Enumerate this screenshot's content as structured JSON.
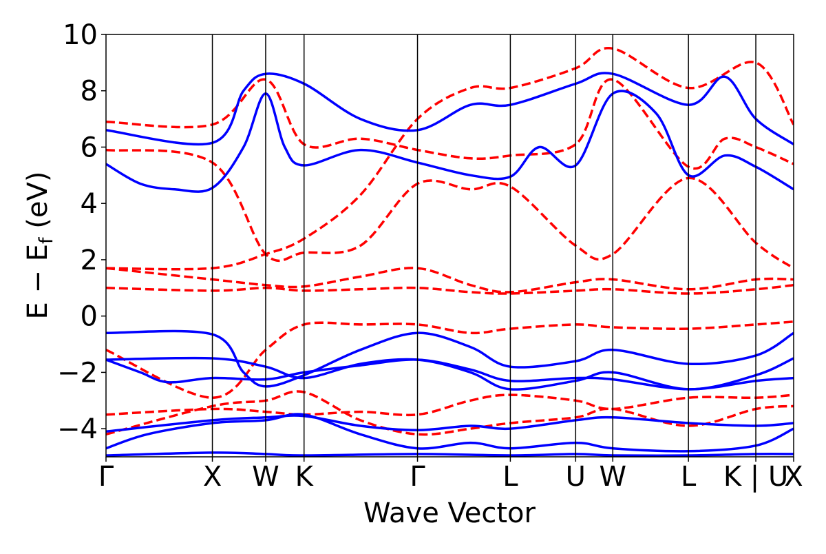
{
  "chart_data": {
    "type": "line",
    "xlabel": "Wave Vector",
    "ylabel": {
      "text": "E − E",
      "subscript": "f",
      "unit": " (eV)"
    },
    "ylim": [
      -5,
      10
    ],
    "yticks": [
      10,
      8,
      6,
      4,
      2,
      0,
      -2,
      -4
    ],
    "ytick_labels": [
      "10",
      "8",
      "6",
      "4",
      "2",
      "0",
      "−2",
      "−4"
    ],
    "kpath_range": [
      0,
      1
    ],
    "high_symmetry_points": [
      {
        "label": "Γ",
        "x": 0.0
      },
      {
        "label": "X",
        "x": 0.1547
      },
      {
        "label": "W",
        "x": 0.2322
      },
      {
        "label": "K",
        "x": 0.288
      },
      {
        "label": "Γ",
        "x": 0.453
      },
      {
        "label": "L",
        "x": 0.588
      },
      {
        "label": "U",
        "x": 0.683
      },
      {
        "label": "W",
        "x": 0.737
      },
      {
        "label": "L",
        "x": 0.847
      },
      {
        "label": "K | U",
        "x": 0.945
      },
      {
        "label": "X",
        "x": 1.0
      }
    ],
    "series": [
      {
        "style": "solid",
        "color": "#0000ff",
        "bands": [
          [
            [
              0,
              -4.95
            ],
            [
              0.1547,
              -4.85
            ],
            [
              0.2322,
              -4.9
            ],
            [
              0.288,
              -4.95
            ],
            [
              0.453,
              -4.9
            ],
            [
              0.588,
              -4.95
            ],
            [
              0.683,
              -4.9
            ],
            [
              0.737,
              -4.95
            ],
            [
              0.847,
              -4.95
            ],
            [
              0.945,
              -4.9
            ],
            [
              1,
              -4.9
            ]
          ],
          [
            [
              0,
              -4.7
            ],
            [
              0.06,
              -4.2
            ],
            [
              0.1547,
              -3.8
            ],
            [
              0.2322,
              -3.7
            ],
            [
              0.288,
              -3.5
            ],
            [
              0.37,
              -4.2
            ],
            [
              0.453,
              -4.7
            ],
            [
              0.53,
              -4.5
            ],
            [
              0.588,
              -4.7
            ],
            [
              0.683,
              -4.5
            ],
            [
              0.737,
              -4.7
            ],
            [
              0.847,
              -4.8
            ],
            [
              0.945,
              -4.6
            ],
            [
              1,
              -4.0
            ]
          ],
          [
            [
              0,
              -4.1
            ],
            [
              0.1547,
              -3.7
            ],
            [
              0.2322,
              -3.6
            ],
            [
              0.288,
              -3.55
            ],
            [
              0.37,
              -3.9
            ],
            [
              0.453,
              -4.05
            ],
            [
              0.53,
              -3.9
            ],
            [
              0.588,
              -4.0
            ],
            [
              0.683,
              -3.7
            ],
            [
              0.737,
              -3.6
            ],
            [
              0.847,
              -3.8
            ],
            [
              0.945,
              -3.9
            ],
            [
              1,
              -3.8
            ]
          ],
          [
            [
              0,
              -1.55
            ],
            [
              0.05,
              -2.0
            ],
            [
              0.09,
              -2.35
            ],
            [
              0.1547,
              -2.2
            ],
            [
              0.2322,
              -2.25
            ],
            [
              0.288,
              -2.0
            ],
            [
              0.37,
              -1.75
            ],
            [
              0.453,
              -1.55
            ],
            [
              0.53,
              -1.9
            ],
            [
              0.588,
              -2.3
            ],
            [
              0.683,
              -2.2
            ],
            [
              0.737,
              -2.25
            ],
            [
              0.847,
              -2.6
            ],
            [
              0.945,
              -2.3
            ],
            [
              1,
              -2.2
            ]
          ],
          [
            [
              0,
              -1.55
            ],
            [
              0.1547,
              -1.5
            ],
            [
              0.2322,
              -1.8
            ],
            [
              0.288,
              -2.2
            ],
            [
              0.37,
              -1.7
            ],
            [
              0.453,
              -1.55
            ],
            [
              0.53,
              -2.0
            ],
            [
              0.588,
              -2.6
            ],
            [
              0.683,
              -2.3
            ],
            [
              0.737,
              -2.0
            ],
            [
              0.847,
              -2.6
            ],
            [
              0.945,
              -2.1
            ],
            [
              1,
              -1.5
            ]
          ],
          [
            [
              0,
              -0.6
            ],
            [
              0.1547,
              -0.65
            ],
            [
              0.2,
              -2.0
            ],
            [
              0.2322,
              -2.5
            ],
            [
              0.288,
              -2.1
            ],
            [
              0.37,
              -1.2
            ],
            [
              0.453,
              -0.6
            ],
            [
              0.53,
              -1.1
            ],
            [
              0.588,
              -1.8
            ],
            [
              0.683,
              -1.6
            ],
            [
              0.737,
              -1.2
            ],
            [
              0.847,
              -1.7
            ],
            [
              0.945,
              -1.4
            ],
            [
              1,
              -0.6
            ]
          ],
          [
            [
              0,
              5.4
            ],
            [
              0.05,
              4.7
            ],
            [
              0.1,
              4.5
            ],
            [
              0.1547,
              4.55
            ],
            [
              0.2,
              6.0
            ],
            [
              0.2322,
              7.9
            ],
            [
              0.26,
              6.0
            ],
            [
              0.288,
              5.35
            ],
            [
              0.37,
              5.9
            ],
            [
              0.453,
              5.45
            ],
            [
              0.53,
              5.0
            ],
            [
              0.588,
              4.95
            ],
            [
              0.63,
              6.0
            ],
            [
              0.683,
              5.35
            ],
            [
              0.737,
              7.9
            ],
            [
              0.8,
              7.2
            ],
            [
              0.847,
              5.0
            ],
            [
              0.9,
              5.7
            ],
            [
              0.945,
              5.3
            ],
            [
              1,
              4.5
            ]
          ],
          [
            [
              0,
              6.6
            ],
            [
              0.1547,
              6.15
            ],
            [
              0.2,
              8.0
            ],
            [
              0.2322,
              8.6
            ],
            [
              0.288,
              8.25
            ],
            [
              0.37,
              7.0
            ],
            [
              0.453,
              6.6
            ],
            [
              0.53,
              7.5
            ],
            [
              0.588,
              7.5
            ],
            [
              0.683,
              8.25
            ],
            [
              0.737,
              8.6
            ],
            [
              0.847,
              7.5
            ],
            [
              0.9,
              8.5
            ],
            [
              0.945,
              7.0
            ],
            [
              1,
              6.1
            ]
          ]
        ]
      },
      {
        "style": "dashed",
        "color": "#ff0000",
        "bands": [
          [
            [
              0,
              -4.2
            ],
            [
              0.1547,
              -3.2
            ],
            [
              0.2322,
              -3.0
            ],
            [
              0.288,
              -2.7
            ],
            [
              0.37,
              -3.7
            ],
            [
              0.453,
              -4.2
            ],
            [
              0.53,
              -4.0
            ],
            [
              0.588,
              -3.8
            ],
            [
              0.683,
              -3.6
            ],
            [
              0.737,
              -3.3
            ],
            [
              0.847,
              -3.9
            ],
            [
              0.945,
              -3.3
            ],
            [
              1,
              -3.2
            ]
          ],
          [
            [
              0,
              -3.5
            ],
            [
              0.1547,
              -3.3
            ],
            [
              0.2322,
              -3.4
            ],
            [
              0.288,
              -3.5
            ],
            [
              0.37,
              -3.4
            ],
            [
              0.453,
              -3.5
            ],
            [
              0.53,
              -3.0
            ],
            [
              0.588,
              -2.8
            ],
            [
              0.683,
              -3.0
            ],
            [
              0.737,
              -3.3
            ],
            [
              0.847,
              -2.9
            ],
            [
              0.945,
              -2.9
            ],
            [
              1,
              -2.8
            ]
          ],
          [
            [
              0,
              1.0
            ],
            [
              0.1547,
              0.9
            ],
            [
              0.2322,
              1.0
            ],
            [
              0.288,
              0.9
            ],
            [
              0.37,
              0.95
            ],
            [
              0.453,
              1.0
            ],
            [
              0.53,
              0.85
            ],
            [
              0.588,
              0.8
            ],
            [
              0.683,
              0.9
            ],
            [
              0.737,
              0.95
            ],
            [
              0.847,
              0.8
            ],
            [
              0.945,
              0.95
            ],
            [
              1,
              1.1
            ]
          ],
          [
            [
              0,
              1.7
            ],
            [
              0.1547,
              1.3
            ],
            [
              0.2322,
              1.1
            ],
            [
              0.288,
              1.05
            ],
            [
              0.37,
              1.4
            ],
            [
              0.453,
              1.7
            ],
            [
              0.53,
              1.1
            ],
            [
              0.588,
              0.85
            ],
            [
              0.683,
              1.2
            ],
            [
              0.737,
              1.3
            ],
            [
              0.847,
              0.95
            ],
            [
              0.945,
              1.3
            ],
            [
              1,
              1.3
            ]
          ],
          [
            [
              0,
              5.9
            ],
            [
              0.1547,
              5.45
            ],
            [
              0.2322,
              2.2
            ],
            [
              0.288,
              2.25
            ],
            [
              0.37,
              2.5
            ],
            [
              0.453,
              4.7
            ],
            [
              0.53,
              4.5
            ],
            [
              0.588,
              4.6
            ],
            [
              0.683,
              2.5
            ],
            [
              0.737,
              2.2
            ],
            [
              0.847,
              4.9
            ],
            [
              0.945,
              2.6
            ],
            [
              1,
              1.7
            ]
          ],
          [
            [
              0,
              6.9
            ],
            [
              0.1547,
              6.8
            ],
            [
              0.2322,
              8.4
            ],
            [
              0.288,
              6.1
            ],
            [
              0.37,
              6.3
            ],
            [
              0.453,
              5.9
            ],
            [
              0.53,
              5.6
            ],
            [
              0.588,
              5.7
            ],
            [
              0.683,
              6.1
            ],
            [
              0.737,
              8.4
            ],
            [
              0.847,
              5.3
            ],
            [
              0.9,
              6.3
            ],
            [
              0.945,
              6.0
            ],
            [
              1,
              5.4
            ]
          ],
          [
            [
              0,
              -1.2
            ],
            [
              0.1547,
              -2.9
            ],
            [
              0.2322,
              -1.2
            ],
            [
              0.288,
              -0.3
            ],
            [
              0.37,
              -0.3
            ],
            [
              0.453,
              -0.3
            ],
            [
              0.53,
              -0.6
            ],
            [
              0.588,
              -0.45
            ],
            [
              0.683,
              -0.3
            ],
            [
              0.737,
              -0.4
            ],
            [
              0.847,
              -0.45
            ],
            [
              0.945,
              -0.3
            ],
            [
              1,
              -0.2
            ]
          ],
          [
            [
              0,
              1.7
            ],
            [
              0.1547,
              1.7
            ],
            [
              0.2322,
              2.2
            ],
            [
              0.288,
              2.75
            ],
            [
              0.37,
              4.3
            ],
            [
              0.453,
              7.0
            ],
            [
              0.53,
              8.1
            ],
            [
              0.588,
              8.1
            ],
            [
              0.683,
              8.8
            ],
            [
              0.737,
              9.5
            ],
            [
              0.847,
              8.1
            ],
            [
              0.945,
              9.0
            ],
            [
              1,
              6.8
            ]
          ]
        ]
      }
    ]
  }
}
